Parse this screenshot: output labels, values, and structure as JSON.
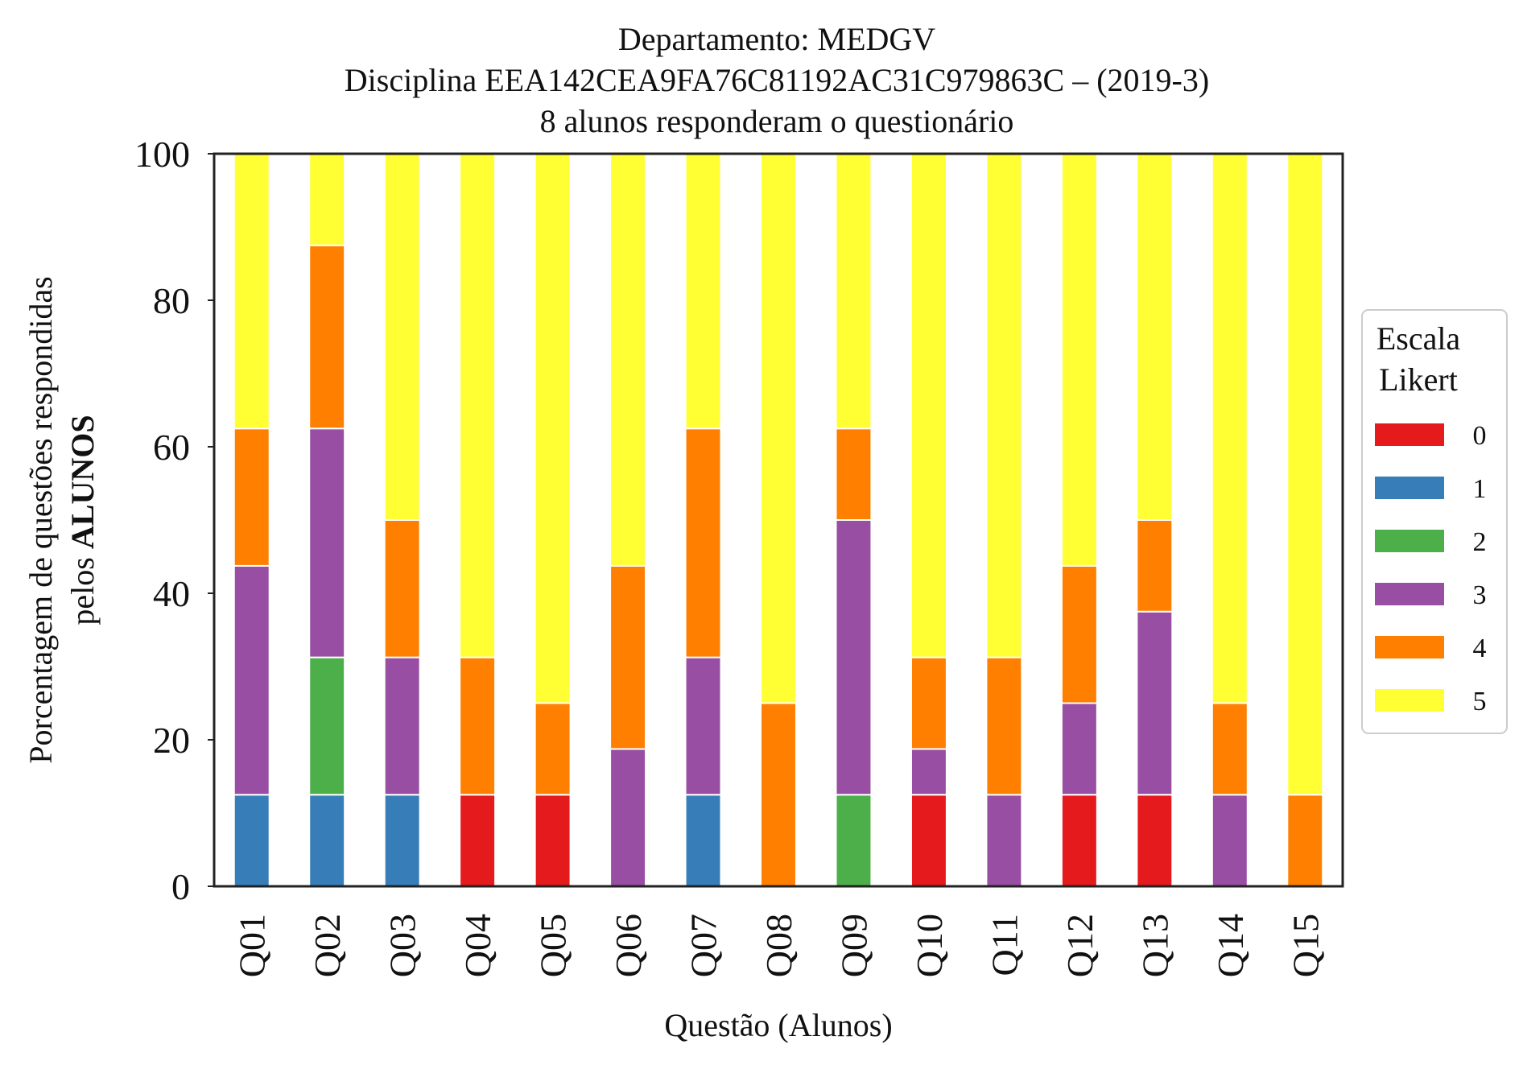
{
  "chart_data": {
    "type": "bar",
    "stacked": true,
    "title_lines": [
      "Departamento: MEDGV",
      "Disciplina EEA142CEA9FA76C81192AC31C979863C – (2019-3)",
      "8 alunos responderam o questionário"
    ],
    "xlabel": "Questão (Alunos)",
    "ylabel_line1": "Porcentagem de questões respondidas",
    "ylabel_line2_prefix": "pelos ",
    "ylabel_line2_bold": "ALUNOS",
    "ylim": [
      0,
      100
    ],
    "yticks": [
      0,
      20,
      40,
      60,
      80,
      100
    ],
    "categories": [
      "Q01",
      "Q02",
      "Q03",
      "Q04",
      "Q05",
      "Q06",
      "Q07",
      "Q08",
      "Q09",
      "Q10",
      "Q11",
      "Q12",
      "Q13",
      "Q14",
      "Q15"
    ],
    "legend": {
      "title_lines": [
        "Escala",
        "Likert"
      ],
      "placement": "right-center"
    },
    "series": [
      {
        "name": "0",
        "color": "#e41a1c",
        "values": [
          0,
          0,
          0,
          12.5,
          12.5,
          0,
          0,
          0,
          0,
          12.5,
          0,
          12.5,
          12.5,
          0,
          0
        ]
      },
      {
        "name": "1",
        "color": "#377eb8",
        "values": [
          12.5,
          12.5,
          12.5,
          0,
          0,
          0,
          12.5,
          0,
          0,
          0,
          0,
          0,
          0,
          0,
          0
        ]
      },
      {
        "name": "2",
        "color": "#4daf4a",
        "values": [
          0,
          18.75,
          0,
          0,
          0,
          0,
          0,
          0,
          12.5,
          0,
          0,
          0,
          0,
          0,
          0
        ]
      },
      {
        "name": "3",
        "color": "#984ea3",
        "values": [
          31.25,
          31.25,
          18.75,
          0,
          0,
          18.75,
          18.75,
          0,
          37.5,
          6.25,
          12.5,
          12.5,
          25,
          12.5,
          0
        ]
      },
      {
        "name": "4",
        "color": "#ff7f00",
        "values": [
          18.75,
          25,
          18.75,
          18.75,
          12.5,
          25,
          31.25,
          25,
          12.5,
          12.5,
          18.75,
          18.75,
          12.5,
          12.5,
          12.5
        ]
      },
      {
        "name": "5",
        "color": "#ffff33",
        "values": [
          37.5,
          12.5,
          50,
          68.75,
          75,
          56.25,
          37.5,
          75,
          37.5,
          68.75,
          68.75,
          56.25,
          50,
          75,
          87.5
        ]
      }
    ]
  }
}
